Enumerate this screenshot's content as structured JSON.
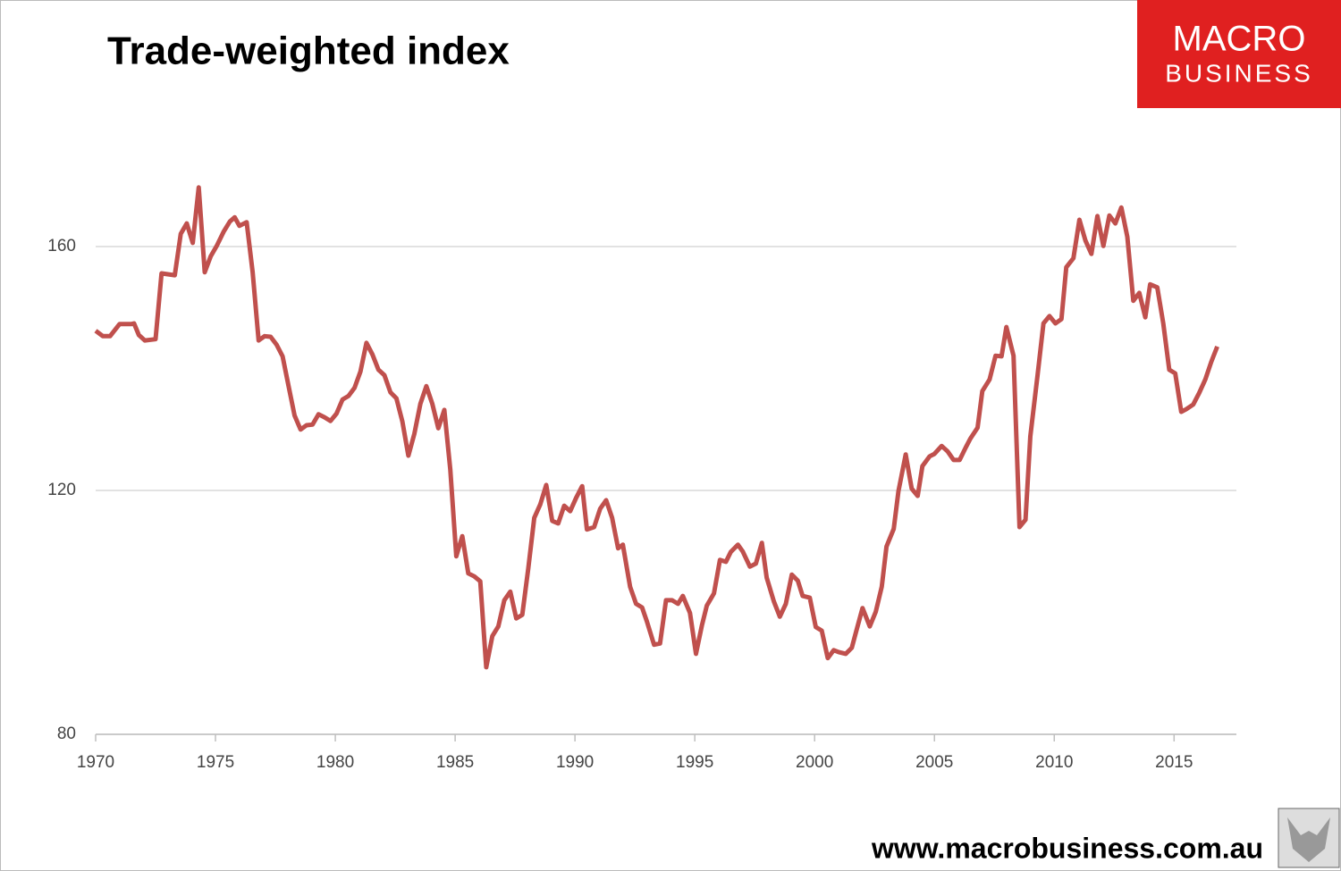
{
  "chart_data": {
    "type": "line",
    "title": "Trade-weighted index",
    "logo": {
      "line1": "MACRO",
      "line2": "BUSINESS"
    },
    "website": "www.macrobusiness.com.au",
    "color": "#c0504d",
    "x": [
      1970.0,
      1970.3,
      1970.6,
      1971.0,
      1971.5,
      1971.6,
      1971.8,
      1972.05,
      1972.5,
      1972.75,
      1973.3,
      1973.55,
      1973.8,
      1974.05,
      1974.3,
      1974.55,
      1974.8,
      1975.05,
      1975.35,
      1975.6,
      1975.8,
      1976.0,
      1976.3,
      1976.55,
      1976.8,
      1977.05,
      1977.3,
      1977.55,
      1977.8,
      1978.05,
      1978.3,
      1978.55,
      1978.8,
      1979.05,
      1979.3,
      1979.55,
      1979.8,
      1980.05,
      1980.3,
      1980.55,
      1980.8,
      1981.05,
      1981.3,
      1981.55,
      1981.8,
      1982.05,
      1982.3,
      1982.55,
      1982.8,
      1983.05,
      1983.3,
      1983.55,
      1983.8,
      1984.05,
      1984.3,
      1984.55,
      1984.8,
      1985.05,
      1985.3,
      1985.55,
      1985.8,
      1986.05,
      1986.3,
      1986.55,
      1986.8,
      1987.05,
      1987.3,
      1987.55,
      1987.8,
      1988.05,
      1988.3,
      1988.55,
      1988.8,
      1989.05,
      1989.3,
      1989.55,
      1989.8,
      1990.05,
      1990.3,
      1990.5,
      1990.8,
      1991.05,
      1991.3,
      1991.55,
      1991.8,
      1992.0,
      1992.3,
      1992.55,
      1992.8,
      1993.0,
      1993.3,
      1993.55,
      1993.8,
      1994.05,
      1994.3,
      1994.5,
      1994.8,
      1995.05,
      1995.3,
      1995.5,
      1995.8,
      1996.05,
      1996.3,
      1996.5,
      1996.8,
      1997.0,
      1997.3,
      1997.55,
      1997.8,
      1998.0,
      1998.3,
      1998.55,
      1998.8,
      1999.05,
      1999.3,
      1999.5,
      1999.8,
      2000.05,
      2000.3,
      2000.55,
      2000.8,
      2001.0,
      2001.3,
      2001.55,
      2001.75,
      2002.0,
      2002.3,
      2002.55,
      2002.8,
      2003.0,
      2003.3,
      2003.5,
      2003.8,
      2004.05,
      2004.3,
      2004.5,
      2004.8,
      2005.0,
      2005.3,
      2005.55,
      2005.8,
      2006.05,
      2006.3,
      2006.5,
      2006.8,
      2007.0,
      2007.3,
      2007.55,
      2007.8,
      2008.0,
      2008.3,
      2008.55,
      2008.8,
      2009.0,
      2009.3,
      2009.55,
      2009.8,
      2010.05,
      2010.3,
      2010.5,
      2010.8,
      2011.05,
      2011.3,
      2011.55,
      2011.8,
      2012.05,
      2012.3,
      2012.55,
      2012.8,
      2013.05,
      2013.3,
      2013.55,
      2013.8,
      2014.0,
      2014.3,
      2014.55,
      2014.8,
      2015.05,
      2015.3,
      2015.5,
      2015.8,
      2016.05,
      2016.3,
      2016.55,
      2016.8
    ],
    "values": [
      146.2,
      145.3,
      145.3,
      147.3,
      147.3,
      147.4,
      145.5,
      144.6,
      144.8,
      155.6,
      155.3,
      162.1,
      163.8,
      160.6,
      169.7,
      155.8,
      158.4,
      160.1,
      162.5,
      164.1,
      164.8,
      163.4,
      164.0,
      155.8,
      144.6,
      145.3,
      145.2,
      143.9,
      142.0,
      137.1,
      132.3,
      130.0,
      130.7,
      130.8,
      132.5,
      132.0,
      131.4,
      132.6,
      134.9,
      135.5,
      136.8,
      139.5,
      144.2,
      142.3,
      139.8,
      138.9,
      136.1,
      135.1,
      131.3,
      125.7,
      129.3,
      134.2,
      137.1,
      134.2,
      130.2,
      133.2,
      123.4,
      109.2,
      112.5,
      106.4,
      105.9,
      105.1,
      91.0,
      96.1,
      97.7,
      102.0,
      103.4,
      99.0,
      99.6,
      107.2,
      115.5,
      117.7,
      120.9,
      115.0,
      114.6,
      117.5,
      116.6,
      118.8,
      120.7,
      113.6,
      114.0,
      117.0,
      118.4,
      115.5,
      110.5,
      111.1,
      104.2,
      101.4,
      100.8,
      98.5,
      94.7,
      94.9,
      102.0,
      102.0,
      101.4,
      102.7,
      99.9,
      93.2,
      97.9,
      101.1,
      103.1,
      108.6,
      108.3,
      109.9,
      111.1,
      110.0,
      107.5,
      108.0,
      111.4,
      105.7,
      101.8,
      99.3,
      101.4,
      106.2,
      105.2,
      102.7,
      102.4,
      97.6,
      97.0,
      92.5,
      93.8,
      93.5,
      93.2,
      94.2,
      97.1,
      100.7,
      97.7,
      100.1,
      104.2,
      110.8,
      113.7,
      119.9,
      125.9,
      120.3,
      119.1,
      124.0,
      125.6,
      126.0,
      127.3,
      126.4,
      125.0,
      125.0,
      127.0,
      128.5,
      130.3,
      136.3,
      138.2,
      142.1,
      142.0,
      146.8,
      142.1,
      114.0,
      115.2,
      128.9,
      138.8,
      147.4,
      148.6,
      147.4,
      148.1,
      156.6,
      158.1,
      164.4,
      161.0,
      158.8,
      165.0,
      160.1,
      165.1,
      163.8,
      166.4,
      161.6,
      151.1,
      152.4,
      148.4,
      153.8,
      153.3,
      147.4,
      139.8,
      139.2,
      132.9,
      133.3,
      134.1,
      136.0,
      138.2,
      141.1,
      143.6
    ],
    "xlim": [
      1970,
      2017.6
    ],
    "xticks": [
      1970,
      1975,
      1980,
      1985,
      1990,
      1995,
      2000,
      2005,
      2010,
      2015
    ],
    "ylim": [
      80,
      180
    ],
    "yticks": [
      80,
      120,
      160
    ],
    "grid": true
  }
}
